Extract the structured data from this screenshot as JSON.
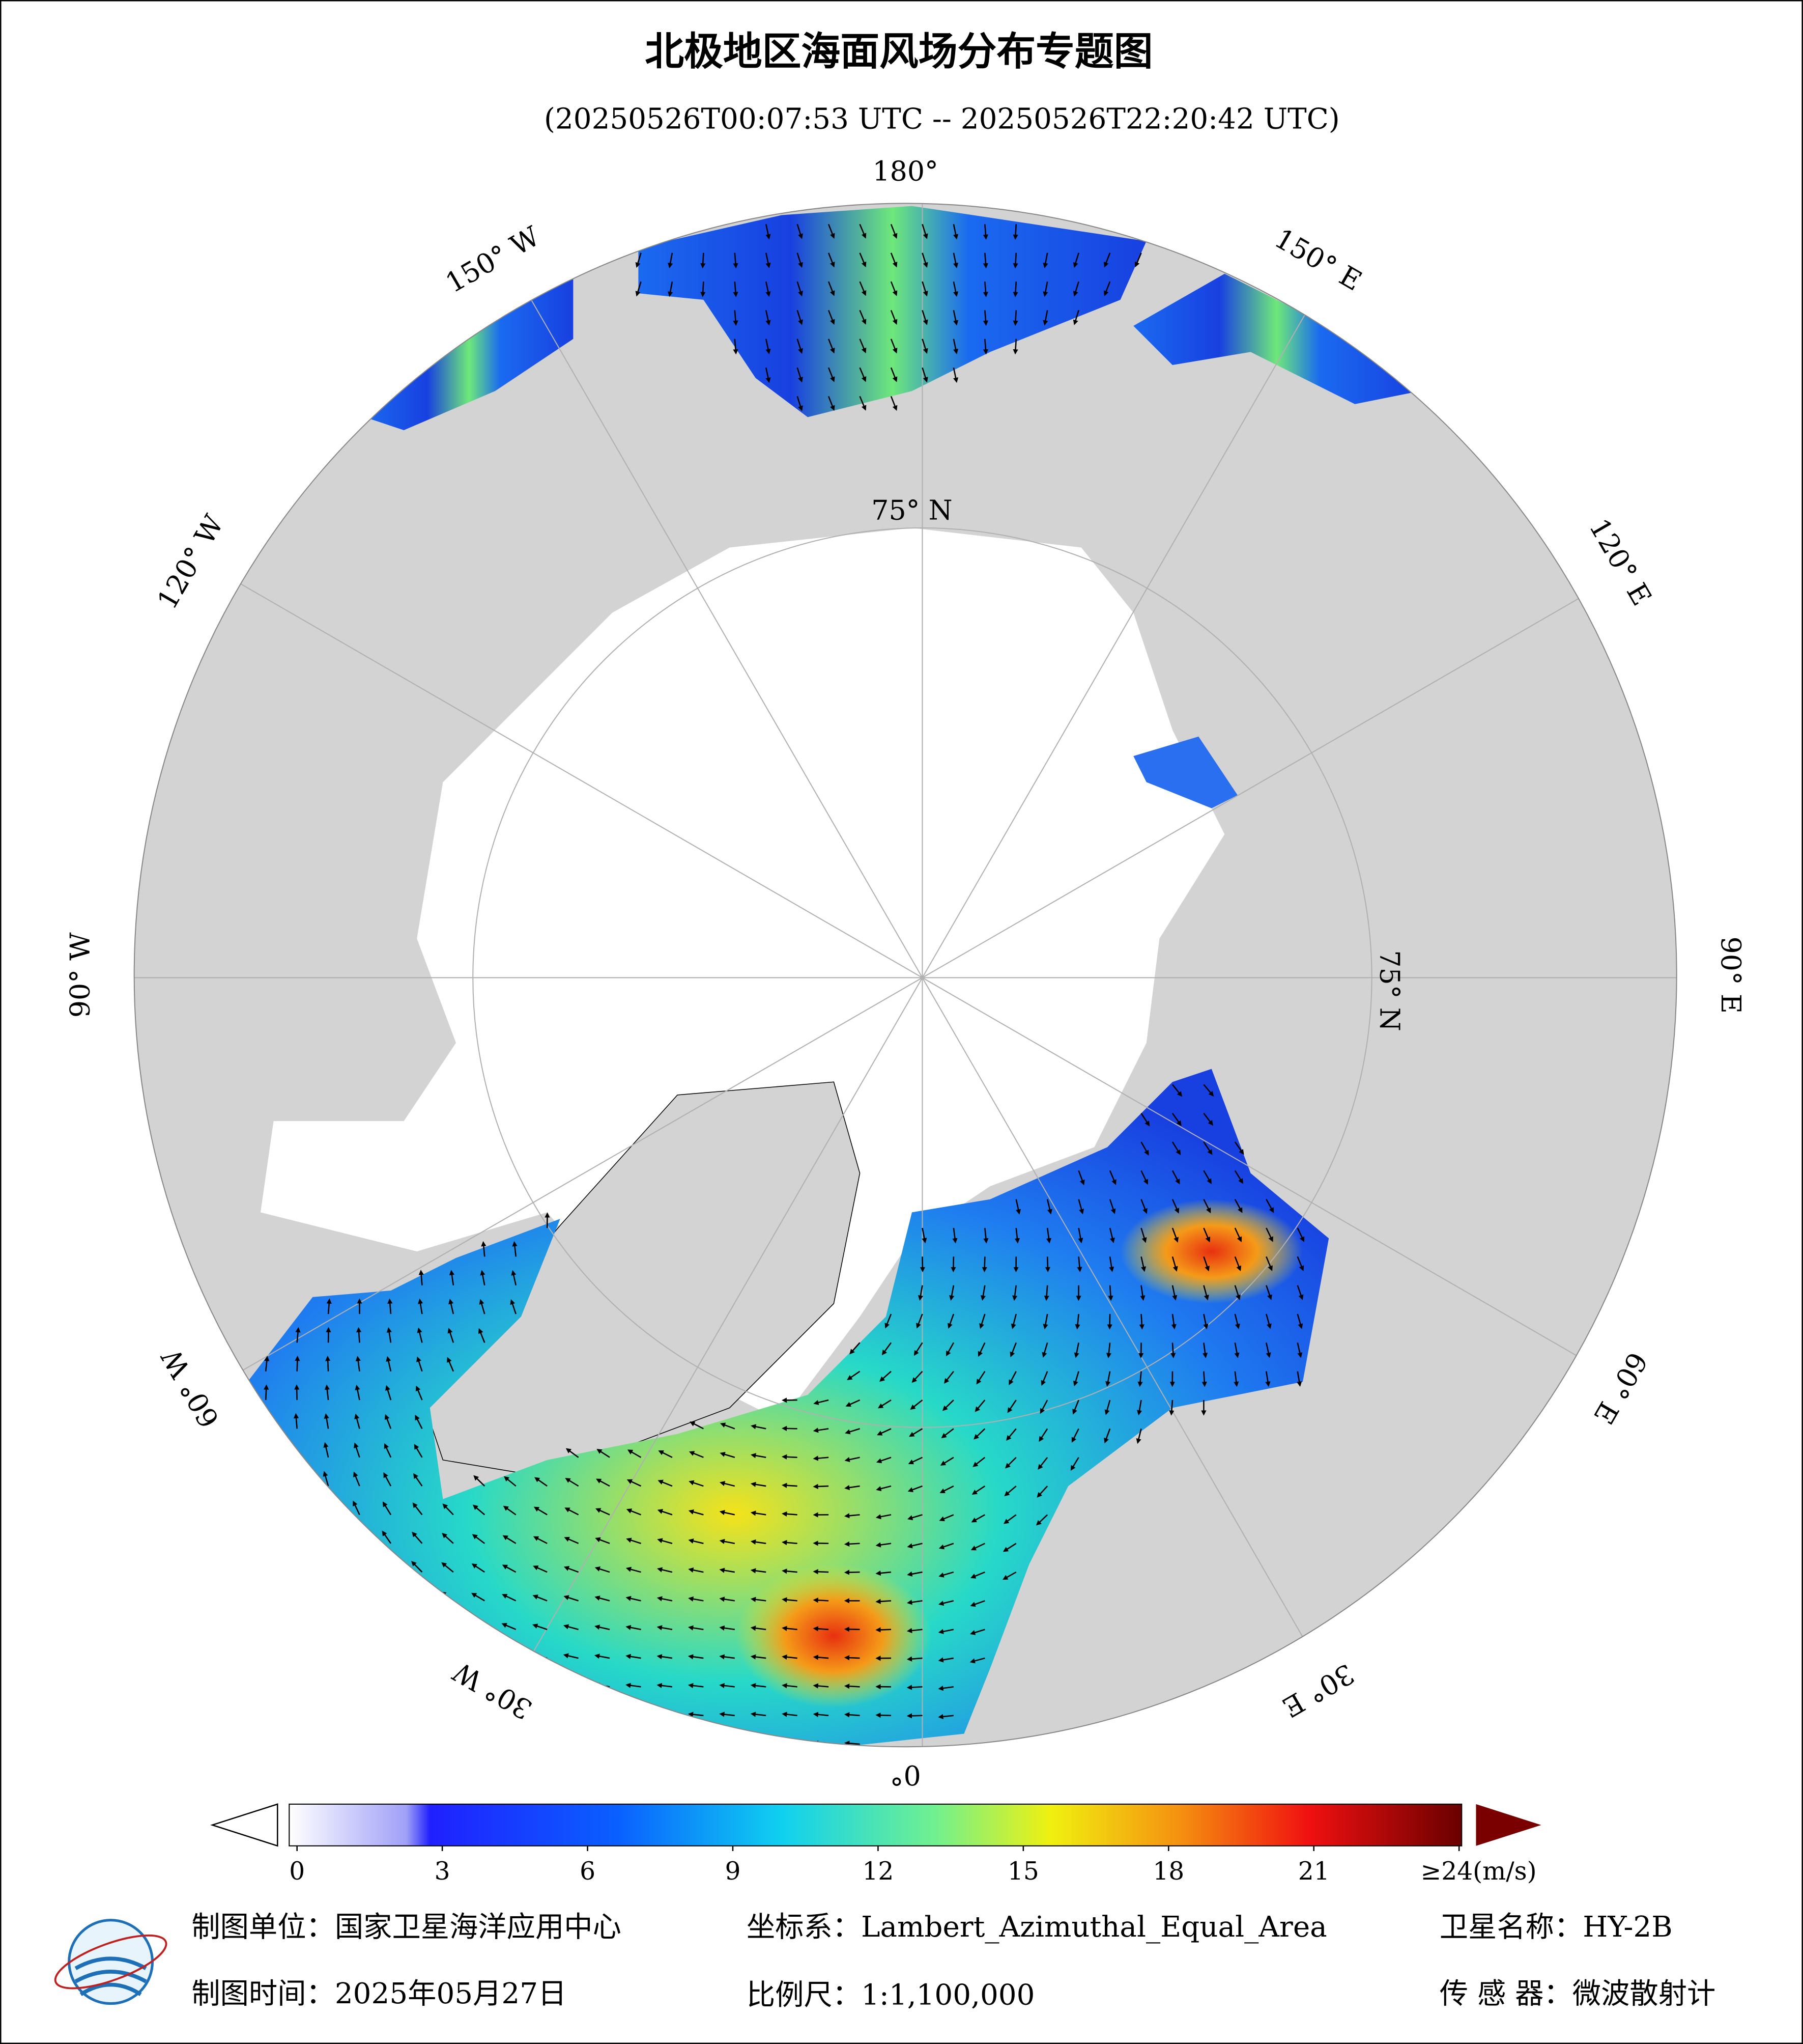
{
  "header": {
    "title": "北极地区海面风场分布专题图",
    "subtitle": "(20250526T00:07:53 UTC -- 20250526T22:20:42 UTC)"
  },
  "map": {
    "lon_labels": [
      "180°",
      "150° W",
      "120° W",
      "90° W",
      "60° W",
      "30° W",
      "0°",
      "30° E",
      "60° E",
      "90° E",
      "120° E",
      "150° E"
    ],
    "lat_labels": [
      "75° N",
      "75° N"
    ]
  },
  "colorbar": {
    "ticks": [
      0,
      3,
      6,
      9,
      12,
      15,
      18,
      21,
      {
        "value": 24,
        "label": "≥24(m/s)"
      }
    ]
  },
  "footer": {
    "unit": "制图单位：国家卫星海洋应用中心",
    "date": "制图时间：2025年05月27日",
    "projection": "坐标系：Lambert_Azimuthal_Equal_Area",
    "scale": "比例尺：1:1,100,000",
    "satellite": "卫星名称：HY-2B",
    "sensor": "传 感 器：微波散射计"
  }
}
